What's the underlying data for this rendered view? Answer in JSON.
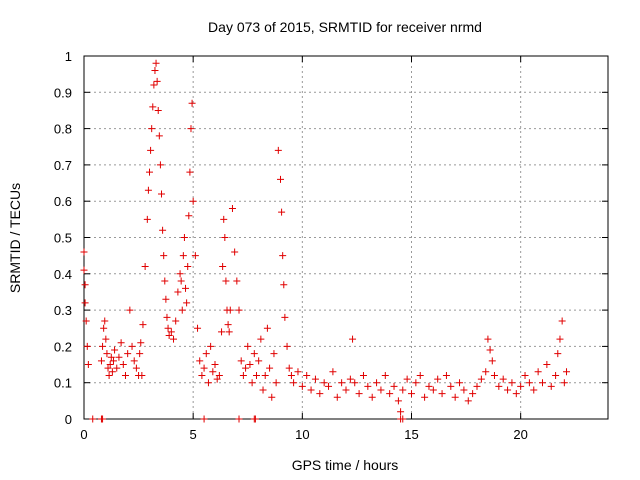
{
  "chart_data": {
    "type": "scatter",
    "title": "Day 073 of 2015, SRMTID for receiver nrmd",
    "xlabel": "GPS time / hours",
    "ylabel": "SRMTID / TECUs",
    "xlim": [
      0,
      24
    ],
    "ylim": [
      0,
      1
    ],
    "xticks": [
      0,
      5,
      10,
      15,
      20
    ],
    "xtick_labels": [
      "0",
      "5",
      "10",
      "15",
      "20"
    ],
    "yticks": [
      0,
      0.1,
      0.2,
      0.3,
      0.4,
      0.5,
      0.6,
      0.7,
      0.8,
      0.9,
      1
    ],
    "ytick_labels": [
      "0",
      "0.1",
      "0.2",
      "0.3",
      "0.4",
      "0.5",
      "0.6",
      "0.7",
      "0.8",
      "0.9",
      "1"
    ],
    "grid": true,
    "marker": "+",
    "color": "#e00000",
    "series": [
      {
        "name": "nrmd",
        "x": [
          0.0,
          0.0,
          0.05,
          0.05,
          0.1,
          0.15,
          0.2,
          0.4,
          0.8,
          0.85,
          0.9,
          0.95,
          1.0,
          1.05,
          1.1,
          1.15,
          1.2,
          1.25,
          1.3,
          1.35,
          1.4,
          1.5,
          1.6,
          1.7,
          1.8,
          1.9,
          2.0,
          2.1,
          2.2,
          2.3,
          2.4,
          2.5,
          2.55,
          2.6,
          2.65,
          2.7,
          2.8,
          2.9,
          2.95,
          3.0,
          3.05,
          3.1,
          3.15,
          3.2,
          3.25,
          3.3,
          3.35,
          3.4,
          3.45,
          3.5,
          3.55,
          3.6,
          3.65,
          3.7,
          3.75,
          3.8,
          3.85,
          3.9,
          4.0,
          4.1,
          4.2,
          4.3,
          4.4,
          4.45,
          4.5,
          4.55,
          4.6,
          4.65,
          4.7,
          4.75,
          4.8,
          4.85,
          4.9,
          4.95,
          5.0,
          5.1,
          5.2,
          5.3,
          5.4,
          5.5,
          5.6,
          5.7,
          5.8,
          5.9,
          6.0,
          6.1,
          6.2,
          6.3,
          6.35,
          6.4,
          6.45,
          6.5,
          6.55,
          6.6,
          6.65,
          6.7,
          6.8,
          6.9,
          7.0,
          7.1,
          7.2,
          7.3,
          7.4,
          7.5,
          7.6,
          7.7,
          7.8,
          7.9,
          8.0,
          8.1,
          8.2,
          8.3,
          8.4,
          8.5,
          8.6,
          8.7,
          8.8,
          8.9,
          9.0,
          9.05,
          9.1,
          9.15,
          9.2,
          9.3,
          9.4,
          9.5,
          9.6,
          9.8,
          10.0,
          10.2,
          10.4,
          10.6,
          10.8,
          11.0,
          11.2,
          11.4,
          11.6,
          11.8,
          12.0,
          12.2,
          12.3,
          12.4,
          12.6,
          12.8,
          13.0,
          13.2,
          13.4,
          13.6,
          13.8,
          14.0,
          14.2,
          14.4,
          14.5,
          14.6,
          14.8,
          15.0,
          15.2,
          15.4,
          15.6,
          15.8,
          16.0,
          16.2,
          16.4,
          16.6,
          16.8,
          17.0,
          17.2,
          17.4,
          17.6,
          17.8,
          18.0,
          18.2,
          18.4,
          18.5,
          18.6,
          18.7,
          18.8,
          19.0,
          19.2,
          19.4,
          19.6,
          19.8,
          20.0,
          20.2,
          20.4,
          20.6,
          20.8,
          21.0,
          21.2,
          21.4,
          21.6,
          21.7,
          21.8,
          21.9,
          22.0,
          22.1,
          0.8,
          0.85,
          5.5,
          7.1,
          7.8,
          7.85,
          14.6,
          14.5
        ],
        "y": [
          0.46,
          0.41,
          0.37,
          0.32,
          0.27,
          0.2,
          0.15,
          0.0,
          0.16,
          0.2,
          0.25,
          0.27,
          0.22,
          0.18,
          0.14,
          0.12,
          0.15,
          0.17,
          0.13,
          0.16,
          0.19,
          0.14,
          0.17,
          0.21,
          0.15,
          0.12,
          0.18,
          0.3,
          0.2,
          0.16,
          0.14,
          0.12,
          0.18,
          0.21,
          0.12,
          0.26,
          0.42,
          0.55,
          0.63,
          0.68,
          0.74,
          0.8,
          0.86,
          0.92,
          0.96,
          0.98,
          0.93,
          0.85,
          0.78,
          0.7,
          0.62,
          0.52,
          0.45,
          0.38,
          0.33,
          0.28,
          0.25,
          0.23,
          0.24,
          0.22,
          0.27,
          0.35,
          0.4,
          0.38,
          0.3,
          0.45,
          0.5,
          0.36,
          0.32,
          0.42,
          0.56,
          0.68,
          0.8,
          0.87,
          0.6,
          0.45,
          0.25,
          0.16,
          0.12,
          0.14,
          0.18,
          0.1,
          0.2,
          0.13,
          0.15,
          0.11,
          0.12,
          0.24,
          0.42,
          0.55,
          0.5,
          0.38,
          0.3,
          0.26,
          0.24,
          0.3,
          0.58,
          0.46,
          0.38,
          0.3,
          0.16,
          0.12,
          0.14,
          0.2,
          0.15,
          0.1,
          0.18,
          0.12,
          0.16,
          0.22,
          0.08,
          0.12,
          0.25,
          0.14,
          0.06,
          0.18,
          0.1,
          0.74,
          0.66,
          0.57,
          0.45,
          0.37,
          0.28,
          0.2,
          0.14,
          0.12,
          0.1,
          0.13,
          0.09,
          0.12,
          0.08,
          0.11,
          0.07,
          0.1,
          0.09,
          0.13,
          0.06,
          0.1,
          0.08,
          0.11,
          0.22,
          0.1,
          0.07,
          0.12,
          0.09,
          0.06,
          0.1,
          0.08,
          0.12,
          0.07,
          0.09,
          0.05,
          0.02,
          0.08,
          0.11,
          0.07,
          0.1,
          0.12,
          0.06,
          0.09,
          0.08,
          0.11,
          0.07,
          0.12,
          0.09,
          0.06,
          0.1,
          0.08,
          0.05,
          0.07,
          0.09,
          0.11,
          0.13,
          0.22,
          0.19,
          0.16,
          0.12,
          0.09,
          0.11,
          0.08,
          0.1,
          0.07,
          0.09,
          0.12,
          0.1,
          0.08,
          0.13,
          0.1,
          0.15,
          0.09,
          0.12,
          0.18,
          0.22,
          0.27,
          0.1,
          0.13,
          0.0,
          0.0,
          0.0,
          0.0,
          0.0,
          0.0,
          0.0,
          0.0
        ]
      }
    ]
  }
}
